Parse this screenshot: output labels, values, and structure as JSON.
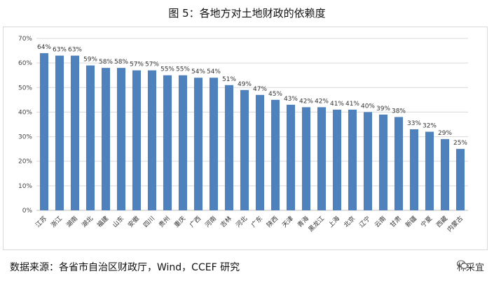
{
  "title": "图 5：各地方对土地财政的依赖度",
  "source": "数据来源：各省市自治区财政厅，Wind，CCEF 研究",
  "watermark": {
    "text": "林采宜",
    "icon": "wechat-icon"
  },
  "chart_data": {
    "type": "bar",
    "categories": [
      "江苏",
      "浙江",
      "湖南",
      "湖北",
      "福建",
      "山东",
      "安徽",
      "四川",
      "贵州",
      "重庆",
      "广西",
      "河南",
      "吉林",
      "河北",
      "广东",
      "陕西",
      "天津",
      "青海",
      "黑龙江",
      "上海",
      "北京",
      "辽宁",
      "云南",
      "甘肃",
      "新疆",
      "宁夏",
      "西藏",
      "内蒙古"
    ],
    "values": [
      64,
      63,
      63,
      59,
      58,
      58,
      57,
      57,
      55,
      55,
      54,
      54,
      51,
      49,
      47,
      45,
      43,
      42,
      42,
      41,
      41,
      40,
      39,
      38,
      33,
      32,
      29,
      25
    ],
    "value_labels": [
      "64%",
      "63%",
      "63%",
      "59%",
      "58%",
      "58%",
      "57%",
      "57%",
      "55%",
      "55%",
      "54%",
      "54%",
      "51%",
      "49%",
      "47%",
      "45%",
      "43%",
      "42%",
      "42%",
      "41%",
      "41%",
      "40%",
      "39%",
      "38%",
      "33%",
      "32%",
      "29%",
      "25%"
    ],
    "y_ticks": [
      "0%",
      "10%",
      "20%",
      "30%",
      "40%",
      "50%",
      "60%",
      "70%"
    ],
    "ylim": [
      0,
      70
    ],
    "grid": true,
    "bar_color": "#4f81bd",
    "xlabel": "",
    "ylabel": ""
  }
}
